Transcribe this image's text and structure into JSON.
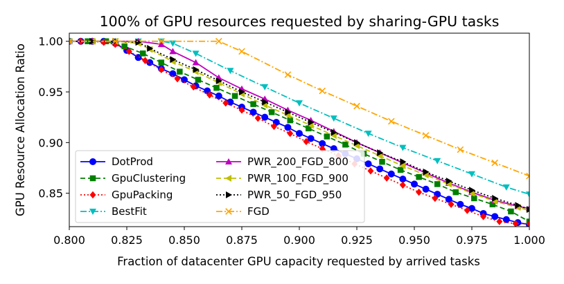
{
  "chart_data": {
    "type": "line",
    "title": "100% of GPU resources requested by sharing-GPU tasks",
    "xlabel": "Fraction of datacenter GPU capacity requested by arrived tasks",
    "ylabel": "GPU Resource Allocation Ratio",
    "xlim": [
      0.8,
      1.0
    ],
    "ylim": [
      0.817,
      1.008
    ],
    "xticks": [
      "0.800",
      "0.825",
      "0.850",
      "0.875",
      "0.900",
      "0.925",
      "0.950",
      "0.975",
      "1.000"
    ],
    "yticks": [
      "0.85",
      "0.90",
      "0.95",
      "1.00"
    ],
    "grid": false,
    "legend_position": "lower-left",
    "series": [
      {
        "name": "DotProd",
        "color": "#0000ff",
        "linestyle": "solid",
        "marker": "circle",
        "x": [
          0.8,
          0.805,
          0.81,
          0.815,
          0.82,
          0.825,
          0.83,
          0.835,
          0.84,
          0.845,
          0.85,
          0.855,
          0.86,
          0.865,
          0.87,
          0.875,
          0.88,
          0.885,
          0.89,
          0.895,
          0.9,
          0.905,
          0.91,
          0.915,
          0.92,
          0.925,
          0.93,
          0.935,
          0.94,
          0.945,
          0.95,
          0.955,
          0.96,
          0.965,
          0.97,
          0.975,
          0.98,
          0.985,
          0.99,
          0.995,
          1.0
        ],
        "y": [
          1.0,
          1.0,
          1.0,
          1.0,
          0.998,
          0.991,
          0.984,
          0.979,
          0.973,
          0.968,
          0.962,
          0.956,
          0.951,
          0.946,
          0.94,
          0.935,
          0.93,
          0.925,
          0.92,
          0.915,
          0.909,
          0.904,
          0.899,
          0.894,
          0.889,
          0.884,
          0.879,
          0.874,
          0.869,
          0.864,
          0.859,
          0.854,
          0.849,
          0.844,
          0.839,
          0.835,
          0.83,
          0.827,
          0.824,
          0.821,
          0.819
        ]
      },
      {
        "name": "GpuClustering",
        "color": "#007f00",
        "linestyle": "dashed",
        "marker": "square",
        "x": [
          0.8,
          0.808,
          0.816,
          0.824,
          0.832,
          0.84,
          0.848,
          0.856,
          0.864,
          0.872,
          0.88,
          0.888,
          0.896,
          0.904,
          0.912,
          0.92,
          0.928,
          0.936,
          0.944,
          0.952,
          0.96,
          0.968,
          0.976,
          0.984,
          0.992,
          1.0
        ],
        "y": [
          1.0,
          1.0,
          1.0,
          0.995,
          0.988,
          0.979,
          0.97,
          0.962,
          0.954,
          0.946,
          0.938,
          0.93,
          0.922,
          0.914,
          0.906,
          0.898,
          0.889,
          0.881,
          0.873,
          0.866,
          0.859,
          0.851,
          0.845,
          0.839,
          0.832,
          0.822
        ]
      },
      {
        "name": "GpuPacking",
        "color": "#ff0000",
        "linestyle": "dotted",
        "marker": "diamond",
        "x": [
          0.8,
          0.805,
          0.81,
          0.815,
          0.82,
          0.826,
          0.833,
          0.84,
          0.847,
          0.854,
          0.861,
          0.868,
          0.875,
          0.882,
          0.889,
          0.896,
          0.903,
          0.91,
          0.917,
          0.924,
          0.931,
          0.938,
          0.945,
          0.952,
          0.959,
          0.966,
          0.973,
          0.98,
          0.987,
          0.994,
          1.0
        ],
        "y": [
          1.0,
          1.0,
          1.0,
          0.999,
          0.997,
          0.99,
          0.981,
          0.972,
          0.963,
          0.955,
          0.947,
          0.939,
          0.932,
          0.924,
          0.916,
          0.909,
          0.901,
          0.894,
          0.887,
          0.879,
          0.872,
          0.865,
          0.858,
          0.851,
          0.845,
          0.839,
          0.833,
          0.827,
          0.822,
          0.82,
          0.82
        ]
      },
      {
        "name": "BestFit",
        "color": "#00bfbf",
        "linestyle": "dashdot",
        "marker": "triangle-down",
        "x": [
          0.8,
          0.81,
          0.82,
          0.83,
          0.84,
          0.845,
          0.855,
          0.87,
          0.885,
          0.9,
          0.915,
          0.93,
          0.945,
          0.96,
          0.975,
          0.99,
          1.0
        ],
        "y": [
          1.0,
          1.0,
          1.0,
          1.0,
          1.0,
          0.998,
          0.988,
          0.971,
          0.955,
          0.939,
          0.924,
          0.909,
          0.895,
          0.882,
          0.869,
          0.856,
          0.849
        ]
      },
      {
        "name": "PWR_200_FGD_800",
        "color": "#bf00bf",
        "linestyle": "solid",
        "marker": "triangle-up",
        "x": [
          0.8,
          0.81,
          0.82,
          0.83,
          0.84,
          0.845,
          0.855,
          0.865,
          0.875,
          0.885,
          0.895,
          0.905,
          0.915,
          0.925,
          0.935,
          0.945,
          0.955,
          0.965,
          0.975,
          0.985,
          0.995,
          1.0
        ],
        "y": [
          1.0,
          1.0,
          1.0,
          1.0,
          0.997,
          0.99,
          0.979,
          0.964,
          0.953,
          0.943,
          0.932,
          0.922,
          0.911,
          0.9,
          0.89,
          0.88,
          0.87,
          0.86,
          0.851,
          0.843,
          0.837,
          0.835
        ]
      },
      {
        "name": "PWR_100_FGD_900",
        "color": "#bfbf00",
        "linestyle": "dashed",
        "marker": "triangle-left",
        "x": [
          0.8,
          0.81,
          0.82,
          0.83,
          0.835,
          0.845,
          0.855,
          0.865,
          0.875,
          0.885,
          0.895,
          0.905,
          0.915,
          0.925,
          0.935,
          0.945,
          0.955,
          0.965,
          0.975,
          0.985,
          0.995,
          1.0
        ],
        "y": [
          1.0,
          1.0,
          1.0,
          0.998,
          0.992,
          0.98,
          0.97,
          0.959,
          0.948,
          0.937,
          0.927,
          0.917,
          0.907,
          0.897,
          0.887,
          0.877,
          0.868,
          0.859,
          0.85,
          0.842,
          0.836,
          0.833
        ]
      },
      {
        "name": "PWR_50_FGD_950",
        "color": "#000000",
        "linestyle": "dotted",
        "marker": "triangle-right",
        "x": [
          0.8,
          0.81,
          0.82,
          0.83,
          0.835,
          0.845,
          0.855,
          0.865,
          0.875,
          0.885,
          0.895,
          0.905,
          0.915,
          0.925,
          0.935,
          0.945,
          0.955,
          0.965,
          0.975,
          0.985,
          0.995,
          1.0
        ],
        "y": [
          1.0,
          1.0,
          1.0,
          0.999,
          0.993,
          0.982,
          0.972,
          0.961,
          0.95,
          0.94,
          0.93,
          0.92,
          0.91,
          0.9,
          0.89,
          0.881,
          0.871,
          0.862,
          0.853,
          0.845,
          0.838,
          0.834
        ]
      },
      {
        "name": "FGD",
        "color": "#ffa500",
        "linestyle": "dashdot",
        "marker": "x",
        "x": [
          0.8,
          0.82,
          0.84,
          0.865,
          0.875,
          0.895,
          0.91,
          0.925,
          0.94,
          0.955,
          0.97,
          0.985,
          1.0
        ],
        "y": [
          1.0,
          1.0,
          1.0,
          1.0,
          0.99,
          0.967,
          0.951,
          0.936,
          0.921,
          0.907,
          0.893,
          0.88,
          0.867
        ]
      }
    ]
  }
}
